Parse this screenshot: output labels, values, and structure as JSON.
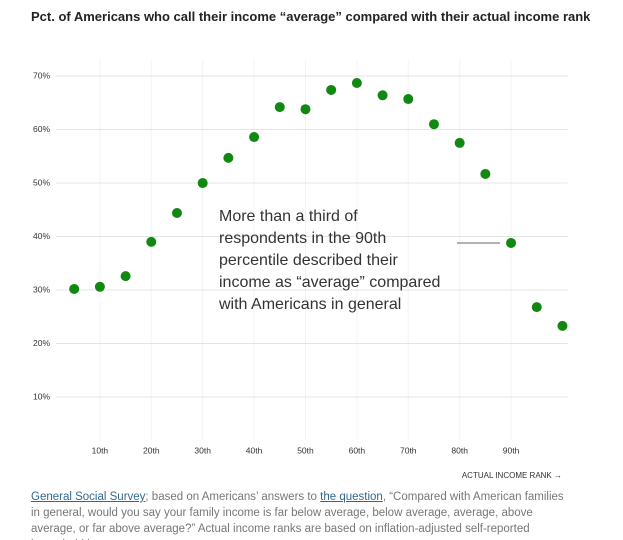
{
  "chart_data": {
    "type": "scatter",
    "title": "Pct. of Americans who call their income “average” compared with their actual income rank",
    "x": [
      5,
      10,
      15,
      20,
      25,
      30,
      35,
      40,
      45,
      50,
      55,
      60,
      65,
      70,
      75,
      80,
      85,
      90,
      95,
      100
    ],
    "values": [
      30.2,
      30.6,
      32.6,
      39.0,
      44.4,
      50.0,
      54.7,
      58.6,
      64.2,
      63.8,
      67.4,
      68.7,
      66.4,
      65.7,
      61.0,
      57.5,
      51.7,
      38.8,
      26.8,
      23.3
    ],
    "color": "#118811",
    "xlim": [
      0,
      101
    ],
    "ylim": [
      0,
      73
    ],
    "xticks": [
      {
        "value": 10,
        "label": "10th"
      },
      {
        "value": 20,
        "label": "20th"
      },
      {
        "value": 30,
        "label": "30th"
      },
      {
        "value": 40,
        "label": "40th"
      },
      {
        "value": 50,
        "label": "50th"
      },
      {
        "value": 60,
        "label": "60th"
      },
      {
        "value": 70,
        "label": "70th"
      },
      {
        "value": 80,
        "label": "80th"
      },
      {
        "value": 90,
        "label": "90th"
      }
    ],
    "yticks": [
      {
        "value": 10,
        "label": "10%"
      },
      {
        "value": 20,
        "label": "20%"
      },
      {
        "value": 30,
        "label": "30%"
      },
      {
        "value": 40,
        "label": "40%"
      },
      {
        "value": 50,
        "label": "50%"
      },
      {
        "value": 60,
        "label": "60%"
      },
      {
        "value": 70,
        "label": "70%"
      }
    ],
    "x_label": "ACTUAL INCOME RANK →",
    "annotation": "More than a third of respondents in the 90th percentile described their income as “average” compared with Americans in general",
    "grid": true
  },
  "footer": {
    "source": "General Social Survey",
    "text1": "; based on Americans’ answers to ",
    "link": "the question",
    "text2": ", “Compared with American families in general, would you say your family income is far below average, below average, average, above average, or far above average?” Actual income ranks are based on inflation-adjusted self-reported household incomes"
  }
}
